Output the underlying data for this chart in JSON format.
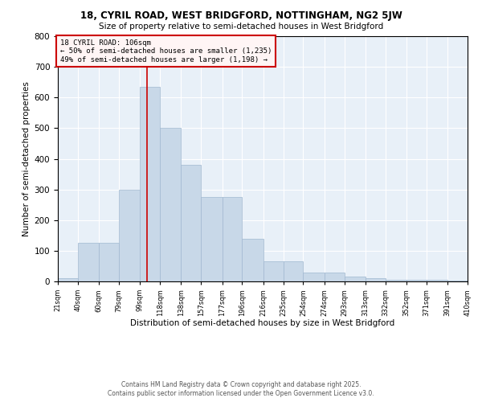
{
  "title1": "18, CYRIL ROAD, WEST BRIDGFORD, NOTTINGHAM, NG2 5JW",
  "title2": "Size of property relative to semi-detached houses in West Bridgford",
  "xlabel": "Distribution of semi-detached houses by size in West Bridgford",
  "ylabel": "Number of semi-detached properties",
  "bins": [
    21,
    40,
    60,
    79,
    99,
    118,
    138,
    157,
    177,
    196,
    216,
    235,
    254,
    274,
    293,
    313,
    332,
    352,
    371,
    391,
    410
  ],
  "heights": [
    10,
    125,
    125,
    300,
    635,
    500,
    380,
    275,
    275,
    140,
    65,
    65,
    30,
    30,
    15,
    10,
    5,
    5,
    5,
    2
  ],
  "bar_color": "#c8d8e8",
  "bar_edge_color": "#a0b8d0",
  "vline_x": 106,
  "vline_color": "#cc0000",
  "annotation_title": "18 CYRIL ROAD: 106sqm",
  "annotation_line1": "← 50% of semi-detached houses are smaller (1,235)",
  "annotation_line2": "49% of semi-detached houses are larger (1,198) →",
  "annotation_box_color": "#fff5f5",
  "annotation_box_edge_color": "#cc0000",
  "bg_color": "#e8f0f8",
  "ylim": [
    0,
    800
  ],
  "yticks": [
    0,
    100,
    200,
    300,
    400,
    500,
    600,
    700,
    800
  ],
  "footer1": "Contains HM Land Registry data © Crown copyright and database right 2025.",
  "footer2": "Contains public sector information licensed under the Open Government Licence v3.0."
}
